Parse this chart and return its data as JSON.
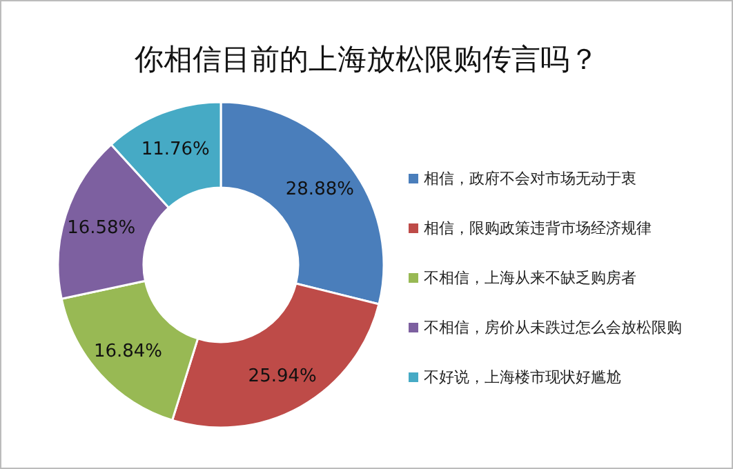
{
  "chart_data": {
    "type": "donut",
    "title": "你相信目前的上海放松限购传言吗？",
    "categories": [
      "相信，政府不会对市场无动于衷",
      "相信，限购政策违背市场经济规律",
      "不相信，上海从来不缺乏购房者",
      "不相信，房价从未跌过怎么会放松限购",
      "不好说，上海楼市现状好尴尬"
    ],
    "values": [
      28.88,
      25.94,
      16.84,
      16.58,
      11.76
    ],
    "value_labels": [
      "28.88%",
      "25.94%",
      "16.84%",
      "16.58%",
      "11.76%"
    ],
    "colors": [
      "#4a7ebb",
      "#be4b48",
      "#98b954",
      "#7d60a0",
      "#46aac5"
    ],
    "legend": "right"
  }
}
